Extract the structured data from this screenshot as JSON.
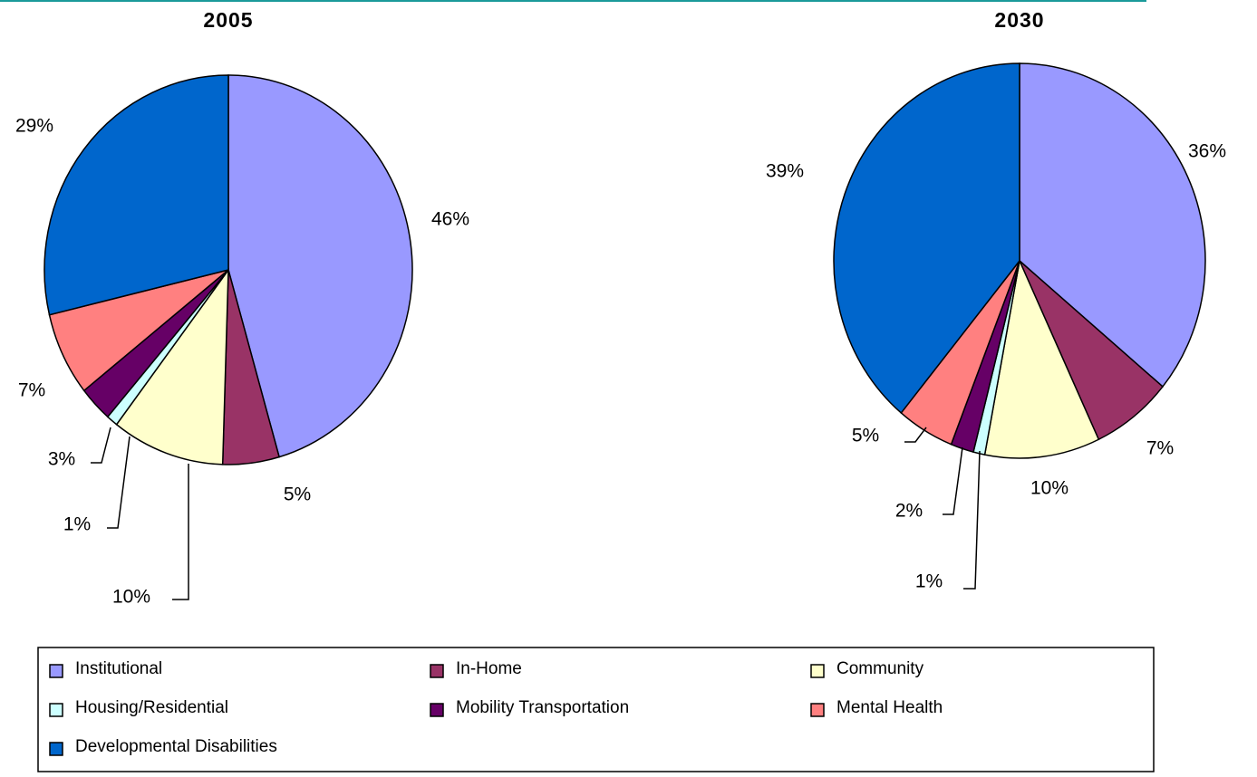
{
  "chart_data": [
    {
      "type": "pie",
      "title": "2005",
      "categories": [
        "Institutional",
        "In-Home",
        "Community",
        "Housing/Residential",
        "Mobility Transportation",
        "Mental Health",
        "Developmental Disabilities"
      ],
      "values": [
        46,
        5,
        10,
        1,
        3,
        7,
        29
      ],
      "value_labels": [
        "46%",
        "5%",
        "10%",
        "1%",
        "3%",
        "7%",
        "29%"
      ],
      "colors": [
        "#9999ff",
        "#993366",
        "#ffffcc",
        "#ccffff",
        "#660066",
        "#ff8080",
        "#0066cc"
      ]
    },
    {
      "type": "pie",
      "title": "2030",
      "categories": [
        "Institutional",
        "In-Home",
        "Community",
        "Housing/Residential",
        "Mobility Transportation",
        "Mental Health",
        "Developmental Disabilities"
      ],
      "values": [
        36,
        7,
        10,
        1,
        2,
        5,
        39
      ],
      "value_labels": [
        "36%",
        "7%",
        "10%",
        "1%",
        "2%",
        "5%",
        "39%"
      ],
      "colors": [
        "#9999ff",
        "#993366",
        "#ffffcc",
        "#ccffff",
        "#660066",
        "#ff8080",
        "#0066cc"
      ]
    }
  ]
}
